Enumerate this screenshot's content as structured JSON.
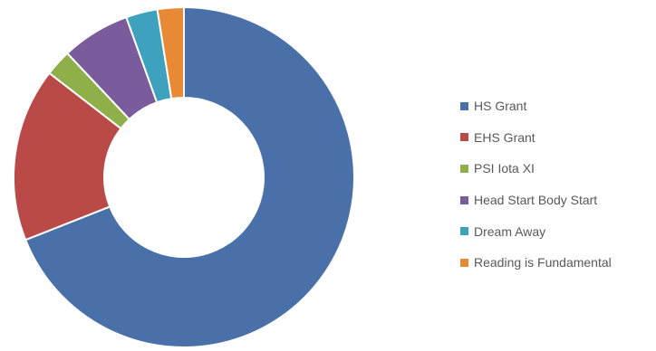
{
  "chart_data": {
    "type": "pie",
    "variant": "donut",
    "title": "",
    "legend_position": "right",
    "slices": [
      {
        "label": "HS Grant",
        "value": 69.0,
        "color": "#4a70aa"
      },
      {
        "label": "EHS Grant",
        "value": 16.5,
        "color": "#b94a48"
      },
      {
        "label": "PSI Iota XI",
        "value": 2.5,
        "color": "#8faf48"
      },
      {
        "label": "Head Start Body Start",
        "value": 6.5,
        "color": "#7a5c9c"
      },
      {
        "label": "Dream Away",
        "value": 3.0,
        "color": "#3ea1bd"
      },
      {
        "label": "Reading is Fundamental",
        "value": 2.5,
        "color": "#e88a35"
      }
    ]
  }
}
